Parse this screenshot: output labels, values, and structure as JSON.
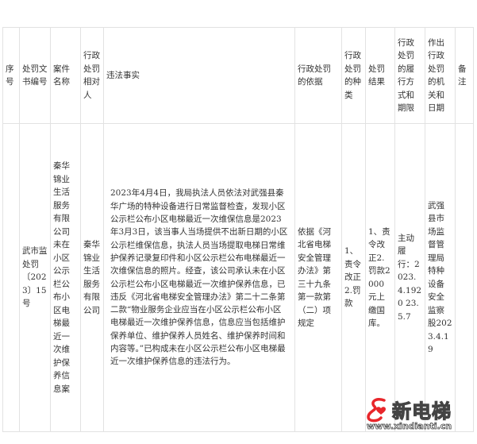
{
  "table": {
    "headers": [
      "序号",
      "处罚文书编号",
      "案件名称",
      "行政处罚相对人",
      "违法事实",
      "行政处罚的依据",
      "行政处罚的种类",
      "处罚结果",
      "行政处罚的履行方式和期限",
      "作出行政处罚的机关和日期",
      "备注"
    ],
    "row": {
      "index": "",
      "doc_number": "武市监处罚〔2023〕15号",
      "case_name": "秦华锦业生活服务有限公司未在小区公示栏公布小区电梯最近一次维护保养信息案",
      "party": "秦华锦业生活服务有限公司",
      "facts": "2023年4月4日，我局执法人员依法对武强县秦华广场的特种设备进行日常监督检查，发现小区公示栏公布小区电梯最近一次维保信息是2023年3月3日，该当事人当场提供不出新日期的小区公示栏维保信息，执法人员当场提取电梯日常维护保养记录复印件和小区公示栏公布电梯最近一次维保信息的照片。经查，该公司承认未在小区公示栏公布小区电梯最近一次维护保养信息，已违反《河北省电梯安全管理办法》第二十二条第二款“物业服务企业应当在小区公示栏公布小区电梯最近一次维护保养信息，信息应当包括维护保养单位、维护保养人员姓名、维护保养时间和内容等。”已构成未在小区公示栏公布小区电梯最近一次维护保养信息的违法行为。",
      "basis": "依据《河北省电梯安全管理办法》第三十九条第一款第（二）项规定",
      "type": "1、责令改正2.罚款",
      "result": "1、责令改正2.罚款2000元上缴国库。",
      "execution": "主动履行：2023.4.1920 23.5.7",
      "authority": "武强县市场监督管理局特种设备安全监察股2023.4.19",
      "remark": ""
    }
  },
  "watermark": {
    "brand": "新电梯",
    "url": "www.xindianti.cn",
    "color": "#e8262b"
  }
}
